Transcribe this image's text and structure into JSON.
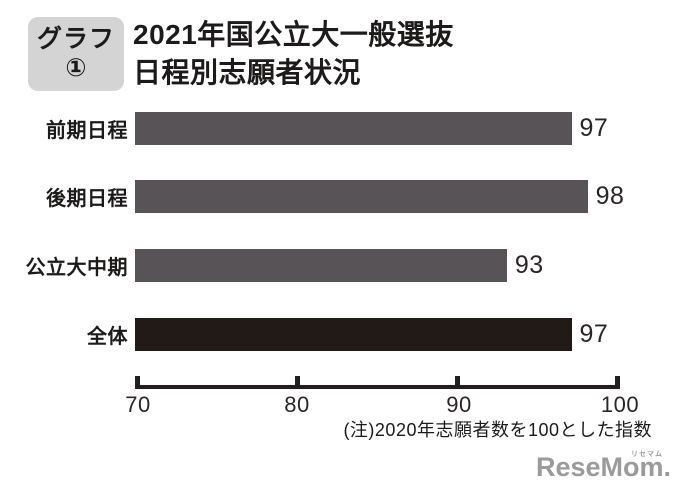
{
  "badge": {
    "line1": "グラフ",
    "line2": "①"
  },
  "title": {
    "line1": "2021年国公立大一般選抜",
    "line2": "日程別志願者状況"
  },
  "note": "(注)2020年志願者数を100とした指数",
  "logo": {
    "text": "ReseMom.",
    "ruby": "リセマム"
  },
  "colors": {
    "bar_gray": "#575357",
    "bar_black": "#211a17",
    "axis": "#241f1f",
    "badge_bg": "#d4d4d4",
    "logo_gray": "#9b9b9b"
  },
  "chart_data": {
    "type": "bar",
    "orientation": "horizontal",
    "title": "2021年国公立大一般選抜 日程別志願者状況",
    "categories": [
      "前期日程",
      "後期日程",
      "公立大中期",
      "全体"
    ],
    "values": [
      97,
      98,
      93,
      97
    ],
    "bar_colors": [
      "#575357",
      "#575357",
      "#575357",
      "#211a17"
    ],
    "xlim": [
      70,
      100
    ],
    "x_ticks": [
      "70",
      "80",
      "90",
      "100"
    ],
    "grid": false,
    "legend": false,
    "note": "(注)2020年志願者数を100とした指数",
    "value_labels_position": "right-of-bar"
  }
}
